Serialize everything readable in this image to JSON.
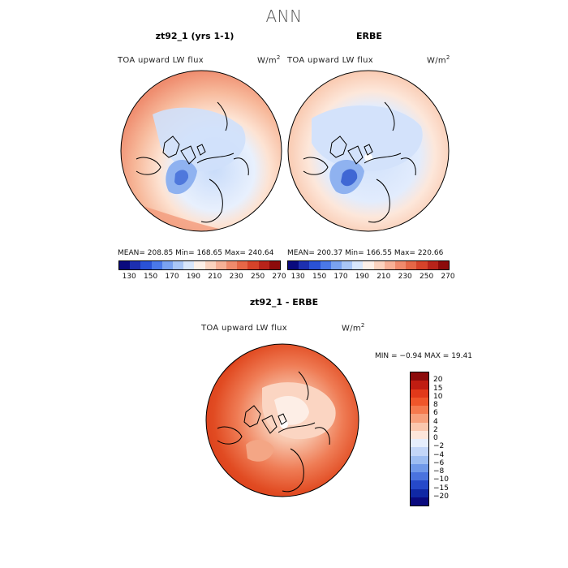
{
  "title": "ANN",
  "panels": [
    {
      "title": "zt92_1 (yrs 1-1)",
      "variable": "TOA upward LW flux",
      "units": "W/m",
      "units_exp": "2",
      "stats": "MEAN= 208.85   Min= 168.65   Max= 240.64"
    },
    {
      "title": "ERBE",
      "variable": "TOA upward LW flux",
      "units": "W/m",
      "units_exp": "2",
      "stats": "MEAN= 200.37   Min= 166.55   Max= 220.66"
    }
  ],
  "diff": {
    "title": "zt92_1 - ERBE",
    "variable": "TOA upward LW flux",
    "units": "W/m",
    "units_exp": "2",
    "stats": "MIN =  −0.94  MAX =  19.41"
  },
  "colorbar_top": {
    "labels": [
      "130",
      "150",
      "170",
      "190",
      "210",
      "230",
      "250",
      "270"
    ],
    "colors": [
      "#0a0a7e",
      "#1d2fb0",
      "#2a52d6",
      "#4a78e8",
      "#7aa2f0",
      "#a9c6f6",
      "#d8e6fb",
      "#fdf0e8",
      "#fbd3bf",
      "#f6b096",
      "#ef8a6c",
      "#e56747",
      "#d6432a",
      "#b8231a",
      "#8c0b0b"
    ]
  },
  "colorbar_diff": {
    "labels": [
      "20",
      "15",
      "10",
      "8",
      "6",
      "4",
      "2",
      "0",
      "−2",
      "−4",
      "−6",
      "−8",
      "−10",
      "−15",
      "−20"
    ],
    "colors": [
      "#8c0b0b",
      "#c01d12",
      "#e2391a",
      "#f0562a",
      "#f57a4e",
      "#f7a07c",
      "#fac7ae",
      "#fde6da",
      "#e6eefc",
      "#c3d6f8",
      "#9dbdf2",
      "#7099e9",
      "#4a73de",
      "#2649c9",
      "#1028a4",
      "#0a0a7e"
    ]
  }
}
